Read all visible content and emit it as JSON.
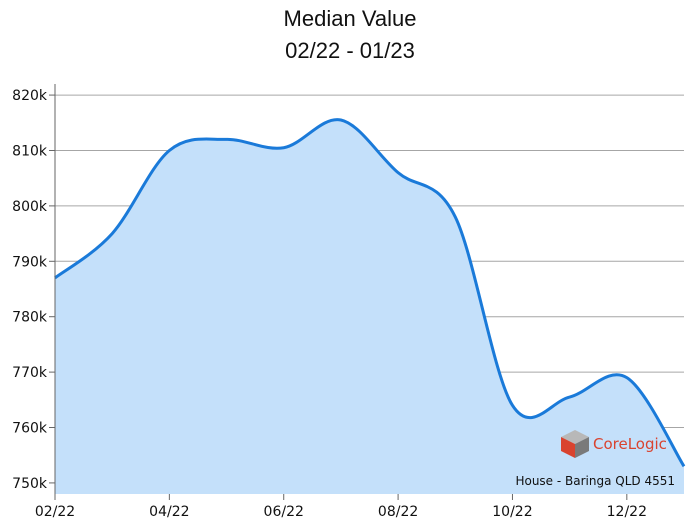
{
  "chart_data": {
    "type": "area",
    "title": "Median Value",
    "subtitle": "02/22 - 01/23",
    "x": [
      "02/22",
      "03/22",
      "04/22",
      "05/22",
      "06/22",
      "07/22",
      "08/22",
      "09/22",
      "10/22",
      "11/22",
      "12/22",
      "01/23"
    ],
    "series": [
      {
        "values": [
          787000,
          795000,
          810000,
          812000,
          810500,
          815500,
          806000,
          798000,
          764000,
          765500,
          769000,
          753000
        ]
      }
    ],
    "x_tick_labels": [
      "02/22",
      "04/22",
      "06/22",
      "08/22",
      "10/22",
      "12/22"
    ],
    "y_tick_labels": [
      "750k",
      "760k",
      "770k",
      "780k",
      "790k",
      "800k",
      "810k",
      "820k"
    ],
    "y_ticks": [
      750000,
      760000,
      770000,
      780000,
      790000,
      800000,
      810000,
      820000
    ],
    "ylim": [
      748000,
      822000
    ],
    "grid": true,
    "line_color": "#1a7ad9",
    "fill_color": "#c4e0fa",
    "annotation": "House - Baringa QLD 4551",
    "logo_text": "CoreLogic"
  }
}
